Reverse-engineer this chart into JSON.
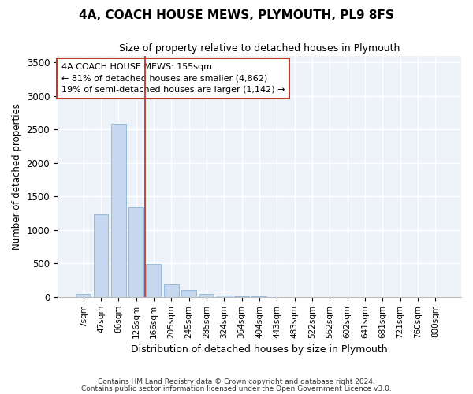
{
  "title_line1": "4A, COACH HOUSE MEWS, PLYMOUTH, PL9 8FS",
  "title_line2": "Size of property relative to detached houses in Plymouth",
  "xlabel": "Distribution of detached houses by size in Plymouth",
  "ylabel": "Number of detached properties",
  "categories": [
    "7sqm",
    "47sqm",
    "86sqm",
    "126sqm",
    "166sqm",
    "205sqm",
    "245sqm",
    "285sqm",
    "324sqm",
    "364sqm",
    "404sqm",
    "443sqm",
    "483sqm",
    "522sqm",
    "562sqm",
    "602sqm",
    "641sqm",
    "681sqm",
    "721sqm",
    "760sqm",
    "800sqm"
  ],
  "values": [
    50,
    1230,
    2580,
    1340,
    490,
    190,
    100,
    50,
    18,
    8,
    4,
    2,
    2,
    0,
    0,
    0,
    0,
    0,
    0,
    0,
    0
  ],
  "bar_color": "#c5d8f0",
  "bar_edge_color": "#8ab4d8",
  "annotation_line1": "4A COACH HOUSE MEWS: 155sqm",
  "annotation_line2": "← 81% of detached houses are smaller (4,862)",
  "annotation_line3": "19% of semi-detached houses are larger (1,142) →",
  "marker_color": "#c0392b",
  "ylim": [
    0,
    3600
  ],
  "yticks": [
    0,
    500,
    1000,
    1500,
    2000,
    2500,
    3000,
    3500
  ],
  "bg_color": "#eef2f9",
  "footer_line1": "Contains HM Land Registry data © Crown copyright and database right 2024.",
  "footer_line2": "Contains public sector information licensed under the Open Government Licence v3.0."
}
